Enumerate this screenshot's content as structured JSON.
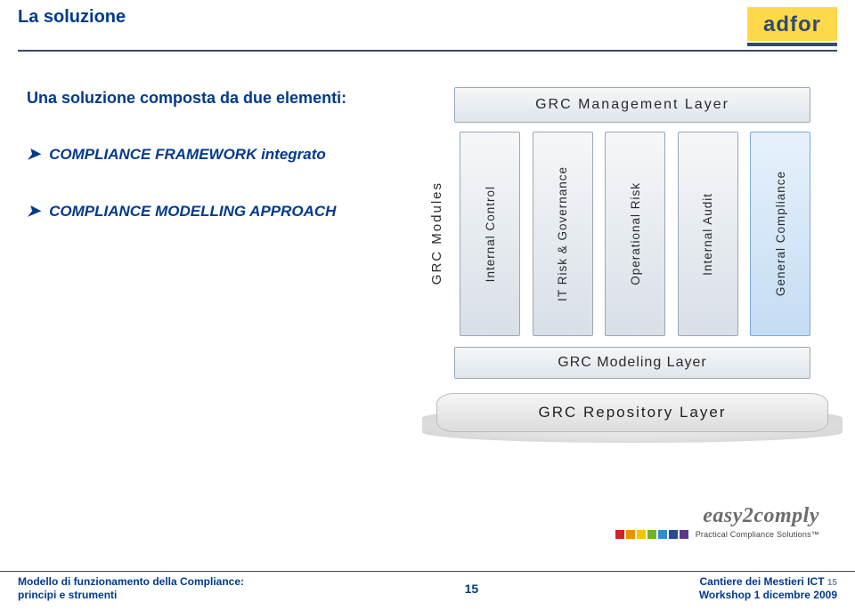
{
  "header": {
    "title": "La soluzione",
    "logo_text": "adfor"
  },
  "intro": "Una soluzione composta da due elementi:",
  "bullets": [
    "COMPLIANCE FRAMEWORK integrato",
    "COMPLIANCE MODELLING APPROACH"
  ],
  "diagram": {
    "mgmt_layer": "GRC Management Layer",
    "modules_label": "GRC Modules",
    "pillars": [
      "Internal Control",
      "IT Risk & Governance",
      "Operational Risk",
      "Internal Audit",
      "General Compliance"
    ],
    "highlight_index": 4,
    "modeling_layer": "GRC Modeling Layer",
    "repository_layer": "GRC Repository Layer",
    "colors": {
      "pillar_bg_top": "#f5f7f9",
      "pillar_bg_bottom": "#d8dfe6",
      "pillar_border": "#9aa7b3",
      "highlight_bg_top": "#e7f1fb",
      "highlight_bg_bottom": "#c4dcf4",
      "highlight_border": "#7aa9d8"
    }
  },
  "e2c": {
    "name": "easy2comply",
    "tagline": "Practical Compliance Solutions™",
    "square_colors": [
      "#e11b22",
      "#f28c00",
      "#f6c400",
      "#6fb12c",
      "#2f8fce",
      "#274b8c",
      "#5b3a8e"
    ]
  },
  "footer": {
    "left_line1": "Modello di funzionamento della Compliance:",
    "left_line2": "principi e strumenti",
    "page_number": "15",
    "right_line1": "Cantiere dei Mestieri ICT",
    "right_line2": "Workshop 1 dicembre 2009",
    "page_hint": "15"
  }
}
